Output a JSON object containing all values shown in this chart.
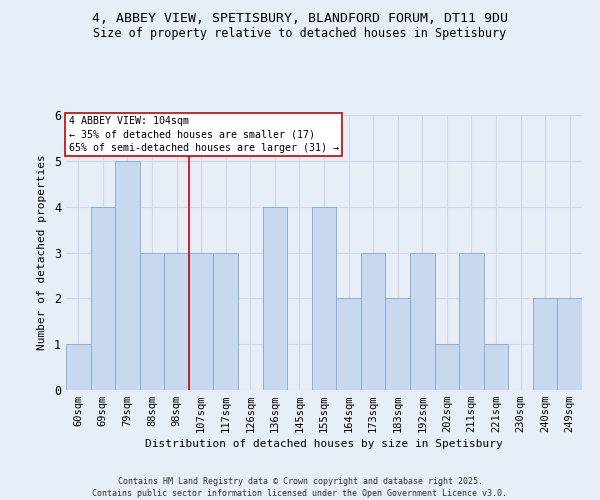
{
  "title_line1": "4, ABBEY VIEW, SPETISBURY, BLANDFORD FORUM, DT11 9DU",
  "title_line2": "Size of property relative to detached houses in Spetisbury",
  "xlabel": "Distribution of detached houses by size in Spetisbury",
  "ylabel": "Number of detached properties",
  "categories": [
    "60sqm",
    "69sqm",
    "79sqm",
    "88sqm",
    "98sqm",
    "107sqm",
    "117sqm",
    "126sqm",
    "136sqm",
    "145sqm",
    "155sqm",
    "164sqm",
    "173sqm",
    "183sqm",
    "192sqm",
    "202sqm",
    "211sqm",
    "221sqm",
    "230sqm",
    "240sqm",
    "249sqm"
  ],
  "values": [
    1,
    4,
    5,
    3,
    3,
    3,
    3,
    0,
    4,
    0,
    4,
    2,
    3,
    2,
    3,
    1,
    3,
    1,
    0,
    2,
    2
  ],
  "bar_color": "#c8d9ef",
  "bar_edge_color": "#8aafd4",
  "grid_color": "#d0d8e8",
  "vline_x_idx": 4,
  "vline_color": "#cc0000",
  "annotation_text": "4 ABBEY VIEW: 104sqm\n← 35% of detached houses are smaller (17)\n65% of semi-detached houses are larger (31) →",
  "annotation_box_color": "#ffffff",
  "annotation_box_edge": "#cc0000",
  "footer_line1": "Contains HM Land Registry data © Crown copyright and database right 2025.",
  "footer_line2": "Contains public sector information licensed under the Open Government Licence v3.0.",
  "ylim": [
    0,
    6
  ],
  "yticks": [
    0,
    1,
    2,
    3,
    4,
    5,
    6
  ],
  "bg_color": "#e8eef8",
  "title_fontsize": 9.5,
  "subtitle_fontsize": 8.5
}
